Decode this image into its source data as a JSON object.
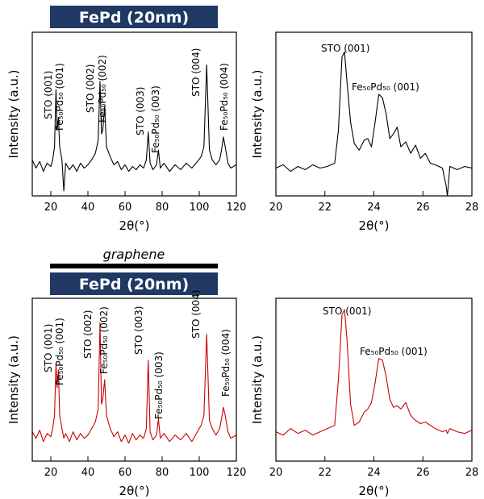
{
  "chart_data": [
    {
      "type": "line",
      "title": "FePd (20nm)",
      "xlabel": "2θ(°)",
      "ylabel": "Intensity (a.u.)",
      "color": "#000000",
      "xlim": [
        10,
        120
      ],
      "xticks": [
        20,
        40,
        60,
        80,
        100,
        120
      ],
      "ylim": [
        0,
        100
      ],
      "annotations": [
        "STO (001)",
        "Fe₅₀Pd₅₀ (001)",
        "STO (002)",
        "Fe₅₀Pd₅₀ (002)",
        "STO (003)",
        "Fe₅₀Pd₅₀ (003)",
        "STO (004)",
        "Fe₅₀Pd₅₀ (004)"
      ],
      "x": [
        10,
        12,
        14,
        16,
        18,
        20,
        21,
        22,
        22.8,
        23.4,
        24.1,
        24.8,
        26,
        27,
        28,
        30,
        32,
        34,
        36,
        38,
        40,
        42,
        44,
        45.5,
        46.5,
        47.3,
        48,
        49,
        50,
        52,
        54,
        56,
        58,
        60,
        62,
        64,
        66,
        68,
        70,
        71.5,
        72.5,
        73.5,
        75,
        77,
        78,
        79,
        81,
        84,
        87,
        90,
        93,
        96,
        99,
        101,
        102.5,
        104,
        105.5,
        107,
        109,
        111,
        112,
        113,
        114,
        115.5,
        117,
        120
      ],
      "values": [
        22,
        17,
        21,
        15,
        20,
        18,
        22,
        30,
        65,
        40,
        48,
        30,
        22,
        3,
        20,
        16,
        19,
        15,
        20,
        17,
        19,
        22,
        26,
        34,
        70,
        38,
        40,
        55,
        30,
        24,
        19,
        21,
        16,
        19,
        15,
        18,
        16,
        19,
        17,
        22,
        39,
        20,
        16,
        19,
        28,
        17,
        20,
        15,
        19,
        16,
        20,
        17,
        21,
        24,
        30,
        80,
        28,
        22,
        19,
        22,
        28,
        36,
        30,
        20,
        17,
        19
      ]
    },
    {
      "type": "line",
      "xlabel": "2θ(°)",
      "ylabel": "Intensity (a.u.)",
      "color": "#000000",
      "xlim": [
        20,
        28
      ],
      "xticks": [
        20,
        22,
        24,
        26,
        28
      ],
      "ylim": [
        0,
        100
      ],
      "annotations": [
        "STO (001)",
        "Fe₅₀Pd₅₀ (001)"
      ],
      "x": [
        20,
        20.3,
        20.6,
        20.9,
        21.2,
        21.5,
        21.8,
        22.1,
        22.4,
        22.55,
        22.7,
        22.8,
        22.9,
        23.05,
        23.2,
        23.4,
        23.6,
        23.75,
        23.9,
        24.05,
        24.2,
        24.35,
        24.5,
        24.65,
        24.8,
        24.95,
        25.1,
        25.3,
        25.5,
        25.7,
        25.9,
        26.1,
        26.3,
        26.5,
        26.8,
        26.95,
        27.0,
        27.1,
        27.4,
        27.7,
        28
      ],
      "values": [
        17,
        19,
        15,
        18,
        16,
        19,
        17,
        18,
        20,
        40,
        85,
        88,
        70,
        45,
        32,
        28,
        34,
        35,
        30,
        45,
        62,
        60,
        50,
        35,
        38,
        42,
        30,
        33,
        26,
        31,
        23,
        26,
        20,
        19,
        17,
        6,
        0,
        18,
        16,
        18,
        17
      ]
    },
    {
      "type": "line",
      "title": "FePd (20nm)",
      "subtitle": "graphene",
      "xlabel": "2θ(°)",
      "ylabel": "Intensity (a.u.)",
      "color": "#cc0000",
      "xlim": [
        10,
        120
      ],
      "xticks": [
        20,
        40,
        60,
        80,
        100,
        120
      ],
      "ylim": [
        0,
        100
      ],
      "annotations": [
        "STO (001)",
        "Fe₅₀Pd₅₀ (001)",
        "STO (002)",
        "Fe₅₀Pd₅₀ (002)",
        "STO (003)",
        "Fe₅₀Pd₅₀ (003)",
        "STO (004)",
        "Fe₅₀Pd₅₀ (004)"
      ],
      "x": [
        10,
        12,
        14,
        16,
        18,
        20,
        21,
        22,
        22.8,
        23.4,
        24.1,
        24.8,
        26,
        27,
        28,
        30,
        32,
        34,
        36,
        38,
        40,
        42,
        44,
        45.5,
        46.5,
        47.3,
        48,
        49,
        50,
        52,
        54,
        56,
        58,
        60,
        62,
        64,
        66,
        68,
        70,
        71.5,
        72.5,
        73.5,
        75,
        77,
        78,
        79,
        81,
        84,
        87,
        90,
        93,
        96,
        99,
        101,
        102.5,
        104,
        105.5,
        107,
        109,
        111,
        112,
        113,
        114,
        115.5,
        117,
        120
      ],
      "values": [
        18,
        14,
        19,
        12,
        17,
        15,
        20,
        28,
        60,
        45,
        56,
        28,
        20,
        14,
        17,
        12,
        18,
        13,
        17,
        14,
        16,
        20,
        24,
        32,
        85,
        35,
        38,
        50,
        28,
        20,
        15,
        18,
        12,
        16,
        11,
        17,
        13,
        16,
        14,
        20,
        62,
        18,
        13,
        16,
        26,
        14,
        17,
        12,
        16,
        13,
        17,
        12,
        18,
        22,
        28,
        78,
        25,
        20,
        16,
        20,
        26,
        33,
        28,
        18,
        14,
        16
      ]
    },
    {
      "type": "line",
      "xlabel": "2θ(°)",
      "ylabel": "Intensity (a.u.)",
      "color": "#cc0000",
      "xlim": [
        20,
        28
      ],
      "xticks": [
        20,
        22,
        24,
        26,
        28
      ],
      "ylim": [
        0,
        100
      ],
      "annotations": [
        "STO (001)",
        "Fe₅₀Pd₅₀ (001)"
      ],
      "x": [
        20,
        20.3,
        20.6,
        20.9,
        21.2,
        21.5,
        21.8,
        22.1,
        22.4,
        22.55,
        22.7,
        22.8,
        22.9,
        23.05,
        23.2,
        23.4,
        23.6,
        23.75,
        23.9,
        24.05,
        24.2,
        24.35,
        24.5,
        24.65,
        24.8,
        24.95,
        25.1,
        25.3,
        25.5,
        25.7,
        25.9,
        26.1,
        26.3,
        26.5,
        26.8,
        26.95,
        27.0,
        27.1,
        27.4,
        27.7,
        28
      ],
      "values": [
        18,
        16,
        20,
        17,
        19,
        16,
        18,
        20,
        22,
        50,
        90,
        93,
        75,
        35,
        22,
        24,
        30,
        32,
        36,
        48,
        63,
        62,
        52,
        38,
        33,
        34,
        32,
        36,
        28,
        25,
        23,
        24,
        22,
        20,
        18,
        19,
        17,
        20,
        18,
        17,
        19
      ]
    }
  ]
}
